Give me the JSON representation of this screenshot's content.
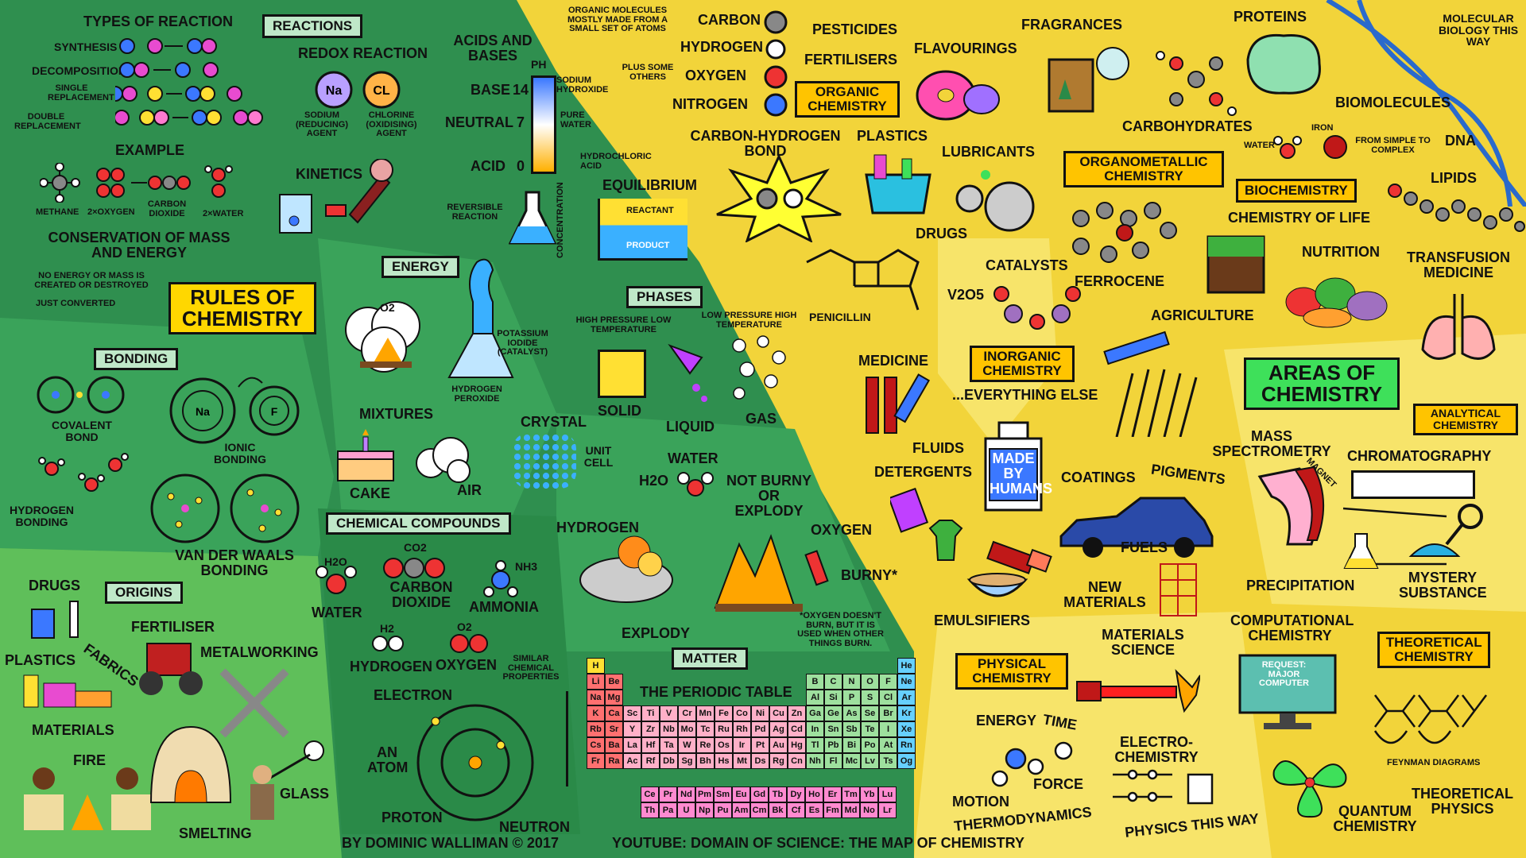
{
  "colors": {
    "green_dark": "#2f8f4f",
    "green_mid": "#3aa35a",
    "green_light": "#5fbf5a",
    "yellow": "#f2d43a",
    "yellow_light": "#f7e46a",
    "accent_yellow": "#ffc400",
    "accent_green": "#3ee05a"
  },
  "rules": {
    "title": "RULES OF CHEMISTRY",
    "reactions_label": "REACTIONS",
    "types_of_reaction": "TYPES OF REACTION",
    "synthesis": "SYNTHESIS",
    "decomposition": "DECOMPOSITION",
    "single_replacement": "SINGLE REPLACEMENT",
    "double_replacement": "DOUBLE REPLACEMENT",
    "example": "EXAMPLE",
    "methane": "METHANE",
    "two_oxygen": "2×OXYGEN",
    "carbon_dioxide": "CARBON DIOXIDE",
    "two_water": "2×WATER",
    "conservation": "CONSERVATION OF MASS AND ENERGY",
    "no_energy": "NO ENERGY OR MASS IS CREATED OR DESTROYED",
    "just_converted": "JUST CONVERTED",
    "redox": "REDOX REACTION",
    "na": "Na",
    "cl": "CL",
    "sodium": "SODIUM (REDUCING) AGENT",
    "chlorine": "CHLORINE (OXIDISING) AGENT",
    "kinetics": "KINETICS",
    "acids_bases": "ACIDS AND BASES",
    "ph": "pH",
    "base": "BASE",
    "neutral": "NEUTRAL",
    "acid": "ACID",
    "ph14": "14",
    "ph7": "7",
    "ph0": "0",
    "sodium_hydroxide": "SODIUM HYDROXIDE",
    "pure_water": "PURE WATER",
    "hydrochloric": "HYDROCHLORIC ACID",
    "reversible": "REVERSIBLE REACTION",
    "equilibrium": "EQUILIBRIUM",
    "reactant": "REACTANT",
    "product": "PRODUCT",
    "concentration": "CONCENTRATION",
    "energy": "ENERGY",
    "o2": "O2",
    "potassium": "POTASSIUM IODIDE (CATALYST)",
    "hydrogen_peroxide": "HYDROGEN PEROXIDE",
    "phases": "PHASES",
    "high_pressure": "HIGH PRESSURE LOW TEMPERATURE",
    "low_pressure": "LOW PRESSURE HIGH TEMPERATURE",
    "solid": "SOLID",
    "liquid": "LIQUID",
    "gas": "GAS",
    "bonding": "BONDING",
    "covalent": "COVALENT BOND",
    "ionic": "IONIC BONDING",
    "na_atom": "Na",
    "f_atom": "F",
    "hydrogen_bonding": "HYDROGEN BONDING",
    "vdw": "VAN DER WAALS BONDING",
    "mixtures": "MIXTURES",
    "cake": "CAKE",
    "air": "AIR",
    "crystal": "CRYSTAL",
    "unit_cell": "UNIT CELL",
    "water_top": "WATER",
    "h2o_formula": "H2O",
    "not_burny": "NOT BURNY OR EXPLODY",
    "hydrogen_side": "HYDROGEN",
    "oxygen_side": "OXYGEN",
    "explody": "EXPLODY",
    "burny": "BURNY*",
    "oxygen_note": "*OXYGEN DOESN'T BURN, BUT IT IS USED WHEN OTHER THINGS BURN.",
    "compounds": "CHEMICAL COMPOUNDS",
    "h2o": "H2O",
    "water": "WATER",
    "co2": "CO2",
    "carbon_dioxide2": "CARBON DIOXIDE",
    "nh3": "NH3",
    "ammonia": "AMMONIA",
    "h2": "H2",
    "hydrogen": "HYDROGEN",
    "o2b": "O2",
    "oxygen": "OXYGEN",
    "similar": "SIMILAR CHEMICAL PROPERTIES",
    "matter": "MATTER",
    "periodic_table": "THE PERIODIC TABLE",
    "electron": "ELECTRON",
    "an_atom": "AN ATOM",
    "proton": "PROTON",
    "neutron": "NEUTRON"
  },
  "origins": {
    "title": "ORIGINS",
    "drugs": "DRUGS",
    "fertiliser": "FERTILISER",
    "metalworking": "METALWORKING",
    "plastics": "PLASTICS",
    "fabrics": "FABRICS",
    "materials": "MATERIALS",
    "fire": "FIRE",
    "smelting": "SMELTING",
    "glass": "GLASS"
  },
  "areas": {
    "title": "AREAS OF CHEMISTRY",
    "organic_note": "ORGANIC MOLECULES MOSTLY MADE FROM A SMALL SET OF ATOMS",
    "plus_some": "PLUS SOME OTHERS",
    "carbon": "CARBON",
    "hydrogen": "HYDROGEN",
    "oxygen": "OXYGEN",
    "nitrogen": "NITROGEN",
    "pesticides": "PESTICIDES",
    "fertilisers": "FERTILISERS",
    "organic": "ORGANIC CHEMISTRY",
    "ch_bond": "CARBON-HYDROGEN BOND",
    "plastics": "PLASTICS",
    "flavourings": "FLAVOURINGS",
    "fragrances": "FRAGRANCES",
    "lubricants": "LUBRICANTS",
    "drugs": "DRUGS",
    "penicillin": "PENICILLIN",
    "proteins": "PROTEINS",
    "molecular": "MOLECULAR BIOLOGY THIS WAY",
    "biomolecules": "BIOMOLECULES",
    "carbohydrates": "CARBOHYDRATES",
    "water": "WATER",
    "iron": "IRON",
    "simple_complex": "FROM SIMPLE TO COMPLEX",
    "dna": "DNA",
    "organometallic": "ORGANOMETALLIC CHEMISTRY",
    "biochemistry": "BIOCHEMISTRY",
    "chem_life": "CHEMISTRY OF LIFE",
    "lipids": "LIPIDS",
    "ferrocene": "FERROCENE",
    "catalysts": "CATALYSTS",
    "v2o5": "V2O5",
    "nutrition": "NUTRITION",
    "transfusion": "TRANSFUSION MEDICINE",
    "agriculture": "AGRICULTURE",
    "medicine": "MEDICINE",
    "inorganic": "INORGANIC CHEMISTRY",
    "everything_else": "...EVERYTHING ELSE",
    "analytical": "ANALYTICAL CHEMISTRY",
    "fluids": "FLUIDS",
    "detergents": "DETERGENTS",
    "made_by_humans": "MADE BY HUMANS",
    "coatings": "COATINGS",
    "pigments": "PIGMENTS",
    "mass_spec": "MASS SPECTROMETRY",
    "magnet": "MAGNET",
    "chromatography": "CHROMATOGRAPHY",
    "fuels": "FUELS",
    "precipitation": "PRECIPITATION",
    "mystery": "MYSTERY SUBSTANCE",
    "emulsifiers": "EMULSIFIERS",
    "new_materials": "NEW MATERIALS",
    "computational": "COMPUTATIONAL CHEMISTRY",
    "request": "REQUEST: MAJOR COMPUTER",
    "theoretical": "THEORETICAL CHEMISTRY",
    "physical": "PHYSICAL CHEMISTRY",
    "materials_science": "MATERIALS SCIENCE",
    "energy": "ENERGY",
    "time": "TIME",
    "motion": "MOTION",
    "force": "FORCE",
    "thermodynamics": "THERMODYNAMICS",
    "electrochem": "ELECTRO-CHEMISTRY",
    "feynman": "FEYNMAN DIAGRAMS",
    "theoretical_physics": "THEORETICAL PHYSICS",
    "quantum": "QUANTUM CHEMISTRY",
    "physics_way": "PHYSICS THIS WAY"
  },
  "footer": {
    "author": "BY DOMINIC WALLIMAN © 2017",
    "youtube": "YOUTUBE: DOMAIN OF SCIENCE: THE MAP OF CHEMISTRY"
  },
  "periodic": {
    "rows": [
      [
        "H",
        "",
        "",
        "",
        "",
        "",
        "",
        "",
        "",
        "",
        "",
        "",
        "",
        "",
        "",
        "",
        "",
        "He"
      ],
      [
        "Li",
        "Be",
        "",
        "",
        "",
        "",
        "",
        "",
        "",
        "",
        "",
        "",
        "B",
        "C",
        "N",
        "O",
        "F",
        "Ne"
      ],
      [
        "Na",
        "Mg",
        "",
        "",
        "",
        "",
        "",
        "",
        "",
        "",
        "",
        "",
        "Al",
        "Si",
        "P",
        "S",
        "Cl",
        "Ar"
      ],
      [
        "K",
        "Ca",
        "Sc",
        "Ti",
        "V",
        "Cr",
        "Mn",
        "Fe",
        "Co",
        "Ni",
        "Cu",
        "Zn",
        "Ga",
        "Ge",
        "As",
        "Se",
        "Br",
        "Kr"
      ],
      [
        "Rb",
        "Sr",
        "Y",
        "Zr",
        "Nb",
        "Mo",
        "Tc",
        "Ru",
        "Rh",
        "Pd",
        "Ag",
        "Cd",
        "In",
        "Sn",
        "Sb",
        "Te",
        "I",
        "Xe"
      ],
      [
        "Cs",
        "Ba",
        "La",
        "Hf",
        "Ta",
        "W",
        "Re",
        "Os",
        "Ir",
        "Pt",
        "Au",
        "Hg",
        "Tl",
        "Pb",
        "Bi",
        "Po",
        "At",
        "Rn"
      ],
      [
        "Fr",
        "Ra",
        "Ac",
        "Rf",
        "Db",
        "Sg",
        "Bh",
        "Hs",
        "Mt",
        "Ds",
        "Rg",
        "Cn",
        "Nh",
        "Fl",
        "Mc",
        "Lv",
        "Ts",
        "Og"
      ]
    ],
    "lanthanides": [
      "Ce",
      "Pr",
      "Nd",
      "Pm",
      "Sm",
      "Eu",
      "Gd",
      "Tb",
      "Dy",
      "Ho",
      "Er",
      "Tm",
      "Yb",
      "Lu"
    ],
    "actinides": [
      "Th",
      "Pa",
      "U",
      "Np",
      "Pu",
      "Am",
      "Cm",
      "Bk",
      "Cf",
      "Es",
      "Fm",
      "Md",
      "No",
      "Lr"
    ]
  }
}
